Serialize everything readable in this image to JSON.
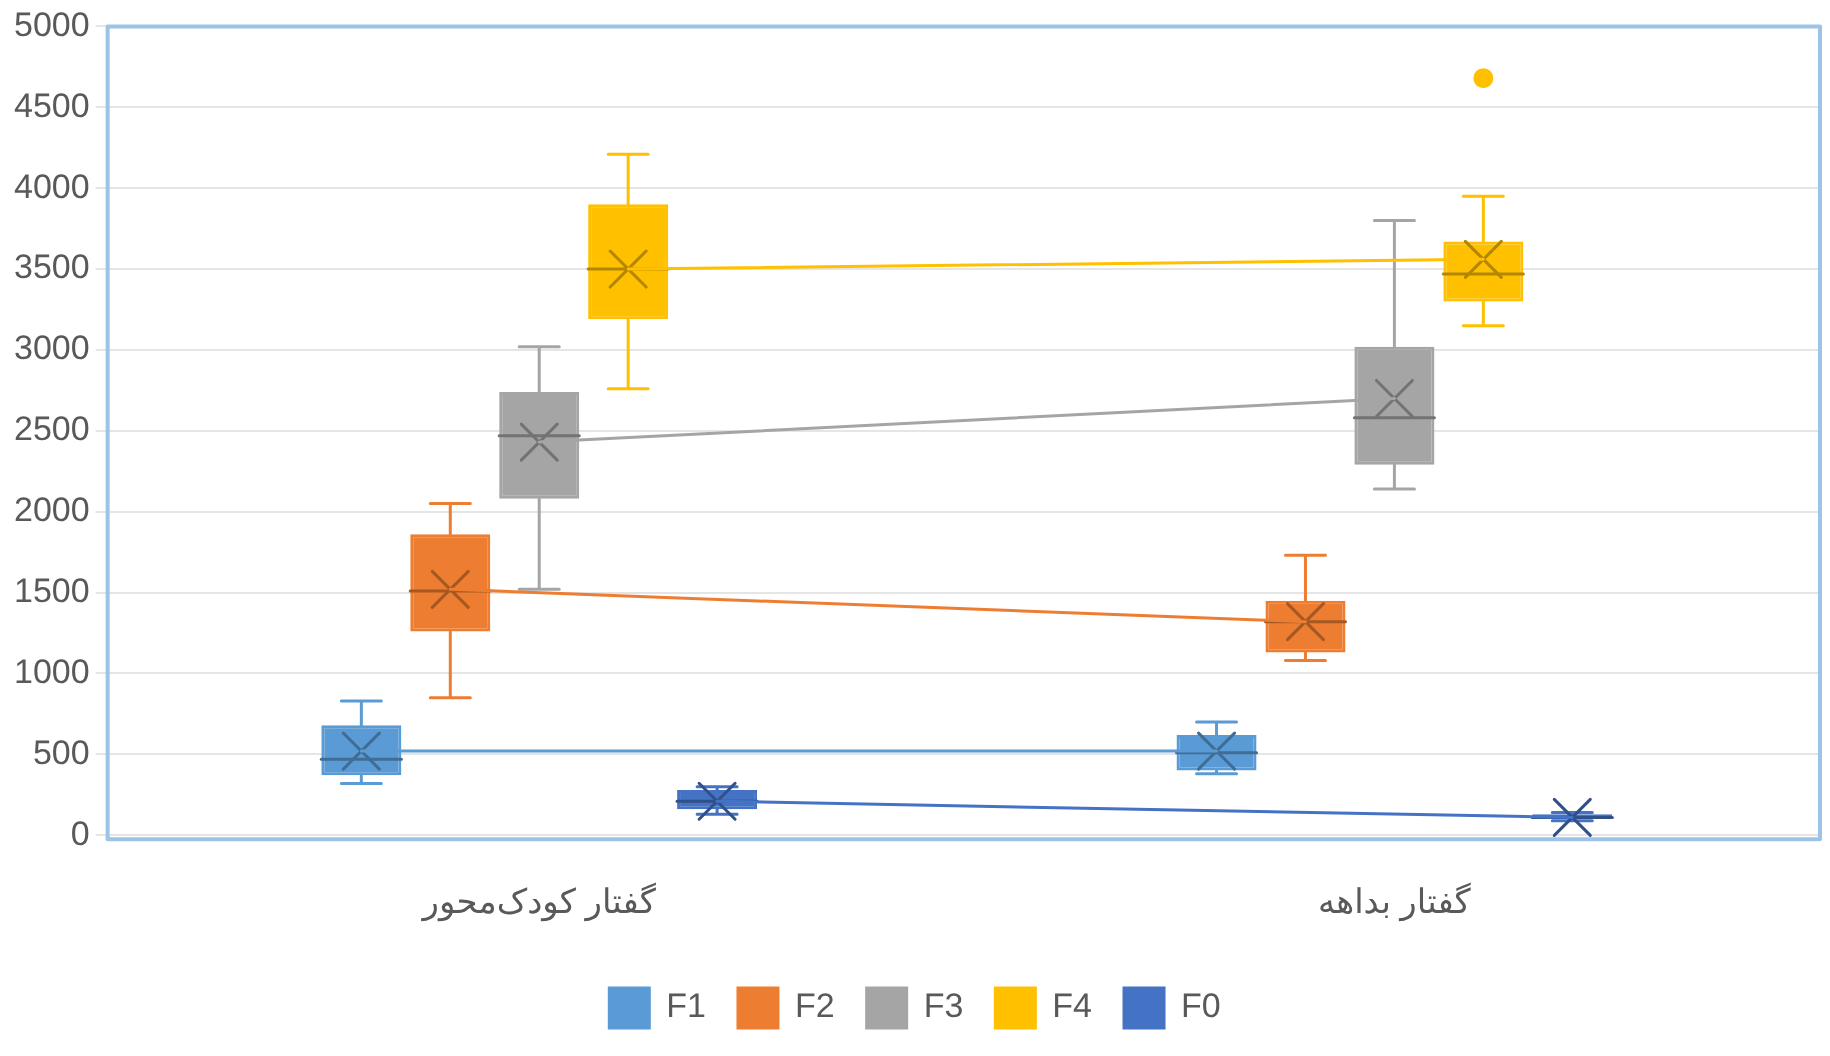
{
  "chart_data": {
    "type": "box",
    "categories": [
      "گفتار کودک‌محور",
      "گفتار بداهه"
    ],
    "series": [
      {
        "name": "F1",
        "color": "#5b9bd5",
        "boxes": [
          {
            "low": 320,
            "q1": 370,
            "median": 470,
            "q3": 680,
            "high": 830,
            "mean": 520
          },
          {
            "low": 380,
            "q1": 400,
            "median": 510,
            "q3": 620,
            "high": 700,
            "mean": 520
          }
        ]
      },
      {
        "name": "F2",
        "color": "#ed7d31",
        "boxes": [
          {
            "low": 850,
            "q1": 1260,
            "median": 1510,
            "q3": 1860,
            "high": 2050,
            "mean": 1520
          },
          {
            "low": 1080,
            "q1": 1130,
            "median": 1320,
            "q3": 1450,
            "high": 1730,
            "mean": 1320
          }
        ]
      },
      {
        "name": "F3",
        "color": "#a5a5a5",
        "boxes": [
          {
            "low": 1520,
            "q1": 2080,
            "median": 2470,
            "q3": 2740,
            "high": 3020,
            "mean": 2430
          },
          {
            "low": 2140,
            "q1": 2290,
            "median": 2580,
            "q3": 3020,
            "high": 3800,
            "mean": 2700
          }
        ]
      },
      {
        "name": "F4",
        "color": "#ffc000",
        "boxes": [
          {
            "low": 2760,
            "q1": 3190,
            "median": 3500,
            "q3": 3900,
            "high": 4210,
            "mean": 3500
          },
          {
            "low": 3150,
            "q1": 3300,
            "median": 3470,
            "q3": 3670,
            "high": 3950,
            "mean": 3560,
            "outliers": [
              4680
            ]
          }
        ]
      },
      {
        "name": "F0",
        "color": "#4472c4",
        "boxes": [
          {
            "low": 130,
            "q1": 160,
            "median": 210,
            "q3": 280,
            "high": 300,
            "mean": 210
          },
          {
            "low": 90,
            "q1": 100,
            "median": 110,
            "q3": 130,
            "high": 140,
            "mean": 110
          }
        ]
      },
      {
        "type": "line",
        "color": "#5b9bd5",
        "values": [
          520,
          520
        ]
      },
      {
        "type": "line",
        "color": "#ed7d31",
        "values": [
          1520,
          1320
        ]
      },
      {
        "type": "line",
        "color": "#a5a5a5",
        "values": [
          2430,
          2700
        ]
      },
      {
        "type": "line",
        "color": "#ffc000",
        "values": [
          3500,
          3560
        ]
      },
      {
        "type": "line",
        "color": "#4472c4",
        "values": [
          210,
          110
        ]
      }
    ],
    "ylim": [
      0,
      5000
    ],
    "yticks": [
      0,
      500,
      1000,
      1500,
      2000,
      2500,
      3000,
      3500,
      4000,
      4500,
      5000
    ],
    "grid": "y",
    "legend": "bottom"
  }
}
